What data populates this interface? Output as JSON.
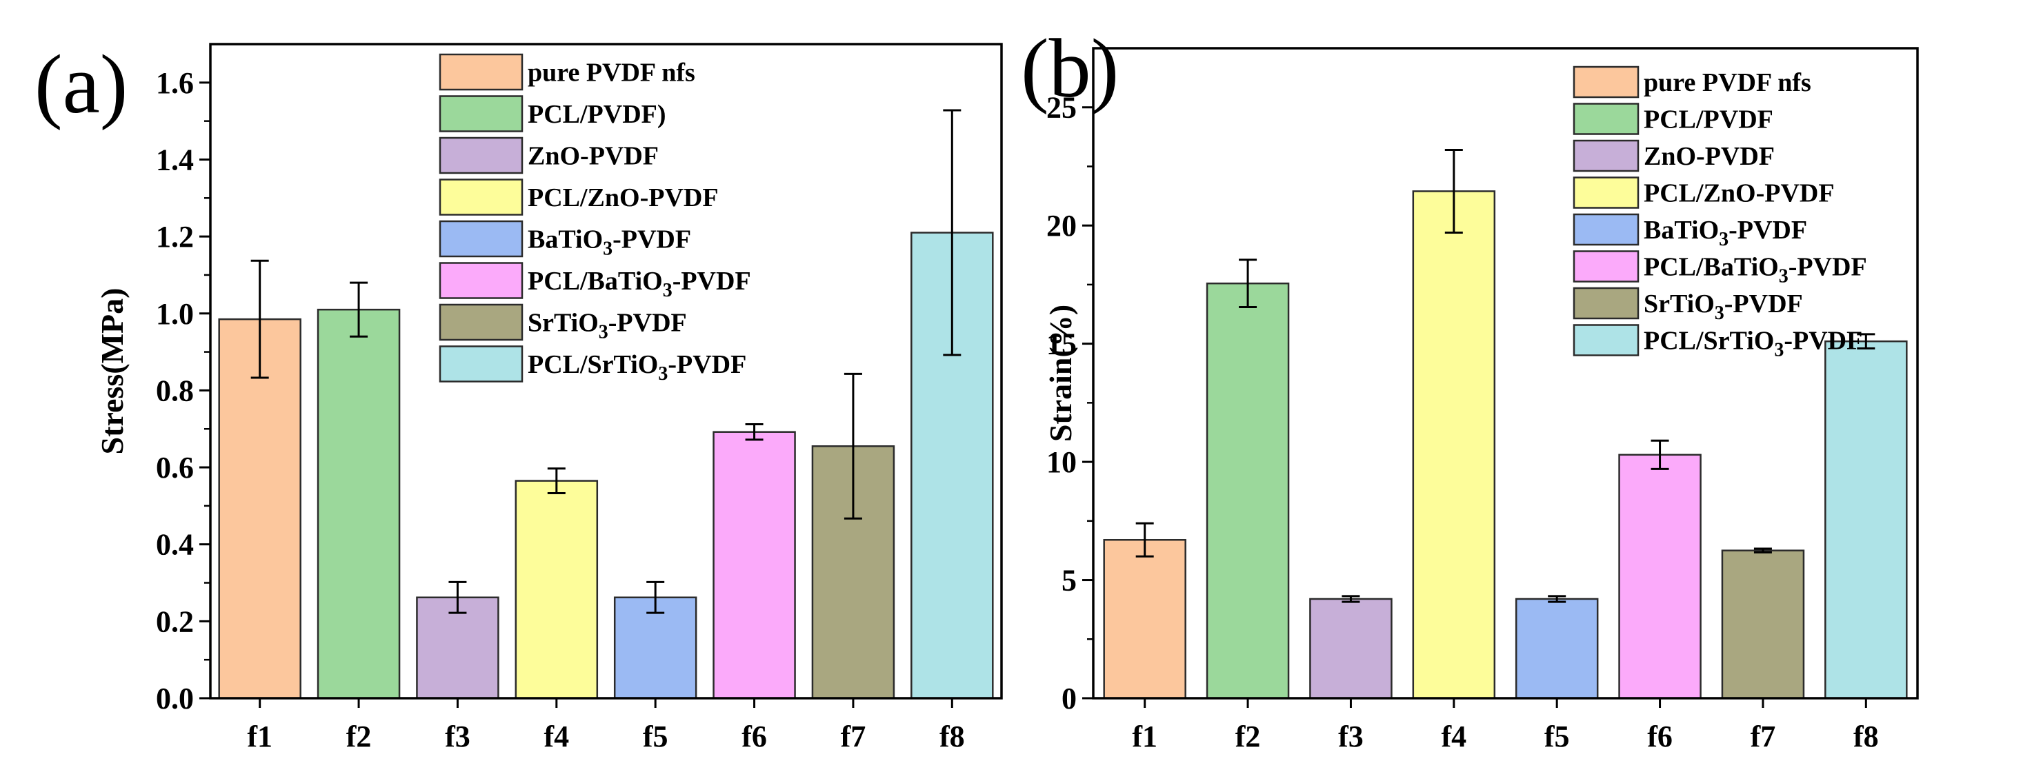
{
  "figure": {
    "description_labels": [
      "(a)",
      "(b)"
    ]
  },
  "chart_data": [
    {
      "type": "bar",
      "panel_label": "(a)",
      "title": "",
      "xlabel": "",
      "ylabel": "Stress(MPa)",
      "ylim": [
        0,
        1.7
      ],
      "yticks": [
        "0.0",
        "0.2",
        "0.4",
        "0.6",
        "0.8",
        "1.0",
        "1.2",
        "1.4",
        "1.6"
      ],
      "ytick_values": [
        0,
        0.2,
        0.4,
        0.6,
        0.8,
        1.0,
        1.2,
        1.4,
        1.6
      ],
      "categories": [
        "f1",
        "f2",
        "f3",
        "f4",
        "f5",
        "f6",
        "f7",
        "f8"
      ],
      "values": [
        0.985,
        1.01,
        0.262,
        0.565,
        0.262,
        0.692,
        0.655,
        1.21
      ],
      "errors": [
        0.152,
        0.07,
        0.04,
        0.032,
        0.04,
        0.02,
        0.188,
        0.318
      ],
      "colors": [
        "#fcc79d",
        "#9bd89b",
        "#c7afd8",
        "#fdfd9a",
        "#9bbaf3",
        "#fbaafa",
        "#a9a780",
        "#aee3e7"
      ],
      "legend_position": "top-right",
      "legend": [
        {
          "label": "pure PVDF nfs"
        },
        {
          "label": "PCL/PVDF)"
        },
        {
          "label": "ZnO-PVDF"
        },
        {
          "label": "PCL/ZnO-PVDF"
        },
        {
          "label": "BaTiO",
          "sub": "3",
          "suffix": "-PVDF"
        },
        {
          "label": "PCL/BaTiO",
          "sub": "3",
          "suffix": "-PVDF"
        },
        {
          "label": "SrTiO",
          "sub": "3",
          "suffix": "-PVDF"
        },
        {
          "label": "PCL/SrTiO",
          "sub": "3",
          "suffix": "-PVDF"
        }
      ]
    },
    {
      "type": "bar",
      "panel_label": "(b)",
      "title": "",
      "xlabel": "",
      "ylabel": "Strain(%)",
      "ylim": [
        0,
        27.5
      ],
      "yticks": [
        "0",
        "5",
        "10",
        "15",
        "20",
        "25"
      ],
      "ytick_values": [
        0,
        5,
        10,
        15,
        20,
        25
      ],
      "categories": [
        "f1",
        "f2",
        "f3",
        "f4",
        "f5",
        "f6",
        "f7",
        "f8"
      ],
      "values": [
        6.7,
        17.55,
        4.2,
        21.45,
        4.2,
        10.3,
        6.25,
        15.1
      ],
      "errors": [
        0.7,
        1.0,
        0.12,
        1.75,
        0.12,
        0.6,
        0.08,
        0.3
      ],
      "colors": [
        "#fcc79d",
        "#9bd89b",
        "#c7afd8",
        "#fdfd9a",
        "#9bbaf3",
        "#fbaafa",
        "#a9a780",
        "#aee3e7"
      ],
      "legend_position": "top-right",
      "legend": [
        {
          "label": "pure PVDF nfs"
        },
        {
          "label": "PCL/PVDF"
        },
        {
          "label": "ZnO-PVDF"
        },
        {
          "label": "PCL/ZnO-PVDF"
        },
        {
          "label": "BaTiO",
          "sub": "3",
          "suffix": "-PVDF"
        },
        {
          "label": "PCL/BaTiO",
          "sub": "3",
          "suffix": "-PVDF"
        },
        {
          "label": "SrTiO",
          "sub": "3",
          "suffix": "-PVDF"
        },
        {
          "label": "PCL/SrTiO",
          "sub": "3",
          "suffix": "-PVDF"
        }
      ]
    }
  ]
}
